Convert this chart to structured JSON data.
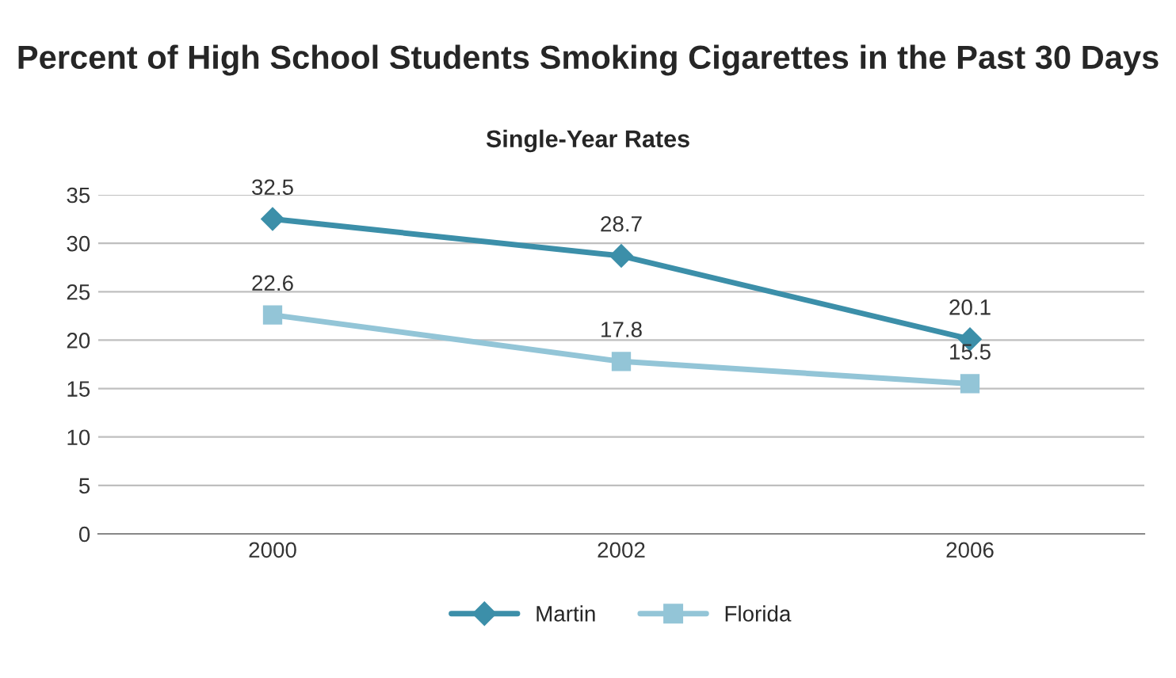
{
  "chart_data": {
    "type": "line",
    "title": "Percent of High School Students Smoking Cigarettes in the Past 30 Days",
    "subtitle": "Single-Year Rates",
    "categories": [
      "2000",
      "2002",
      "2006"
    ],
    "series": [
      {
        "name": "Martin",
        "color": "#3c8fa9",
        "values": [
          32.5,
          28.7,
          20.1
        ],
        "marker": "diamond"
      },
      {
        "name": "Florida",
        "color": "#93c5d7",
        "values": [
          22.6,
          17.8,
          15.5
        ],
        "marker": "square"
      }
    ],
    "ylim": [
      0,
      35
    ],
    "yticks": [
      0,
      5,
      10,
      15,
      20,
      25,
      30,
      35
    ],
    "grid": "y",
    "legend": "bottom",
    "data_labels": true
  }
}
